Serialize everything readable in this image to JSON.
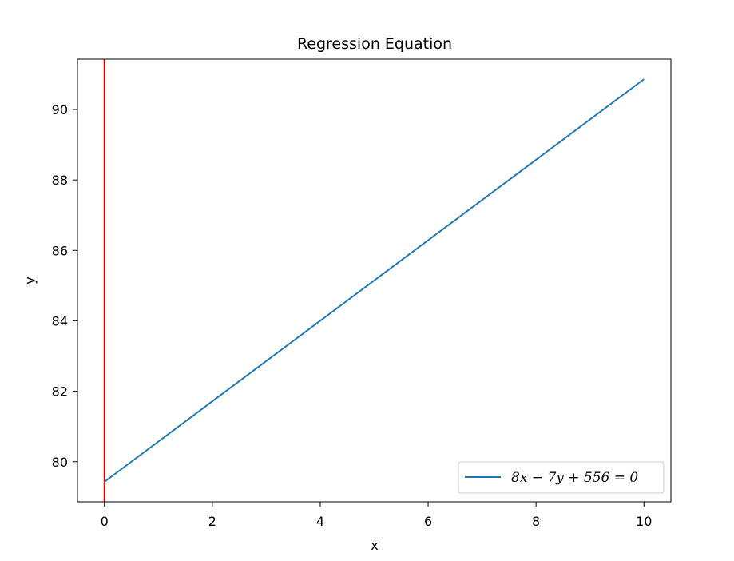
{
  "chart_data": {
    "type": "line",
    "title": "Regression Equation",
    "xlabel": "x",
    "ylabel": "y",
    "xlim": [
      -0.5,
      10.5
    ],
    "ylim": [
      78.86,
      91.43
    ],
    "xticks": [
      0,
      2,
      4,
      6,
      8,
      10
    ],
    "yticks": [
      80,
      82,
      84,
      86,
      88,
      90
    ],
    "xtick_labels": [
      "0",
      "2",
      "4",
      "6",
      "8",
      "10"
    ],
    "ytick_labels": [
      "80",
      "82",
      "84",
      "86",
      "88",
      "90"
    ],
    "grid": false,
    "legend_position": "lower-right",
    "series": [
      {
        "name": "8x − 7y + 556 = 0",
        "color": "#1f77b4",
        "x": [
          0,
          10
        ],
        "y": [
          79.43,
          90.86
        ]
      }
    ],
    "vertical_line": {
      "x": 0,
      "color": "#e00000"
    }
  }
}
